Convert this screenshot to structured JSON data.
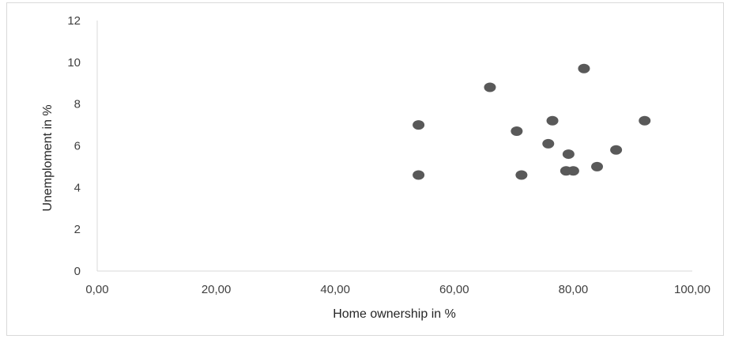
{
  "chart_data": {
    "type": "scatter",
    "title": "",
    "xlabel": "Home ownership in %",
    "ylabel": "Unemploment in %",
    "xlim": [
      0,
      100
    ],
    "ylim": [
      0,
      12
    ],
    "x_ticks": [
      "0,00",
      "20,00",
      "40,00",
      "60,00",
      "80,00",
      "100,00"
    ],
    "y_ticks": [
      "0",
      "2",
      "4",
      "6",
      "8",
      "10",
      "12"
    ],
    "grid": false,
    "legend": "none",
    "marker_color": "#595959",
    "series": [
      {
        "x": [
          54.0,
          54.0,
          66.0,
          70.5,
          71.3,
          75.8,
          76.5,
          78.8,
          79.2,
          80.0,
          81.8,
          84.0,
          87.2,
          92.0
        ],
        "y": [
          7.0,
          4.6,
          8.8,
          6.7,
          4.6,
          6.1,
          7.2,
          4.8,
          5.6,
          4.8,
          9.7,
          5.0,
          5.8,
          7.2
        ]
      }
    ]
  }
}
